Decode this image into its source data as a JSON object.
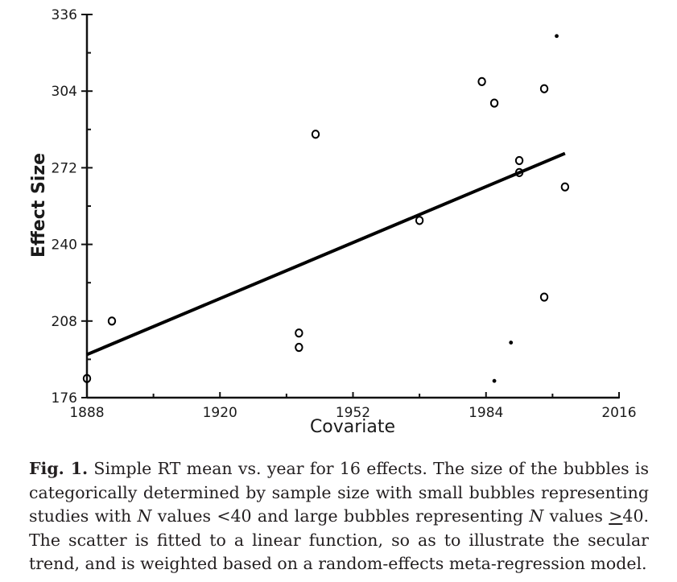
{
  "chart_data": {
    "type": "scatter",
    "title": "",
    "xlabel": "Covariate",
    "ylabel": "Effect Size",
    "xlim": [
      1888,
      2016
    ],
    "ylim": [
      176,
      336
    ],
    "x_ticks": [
      1888,
      1920,
      1952,
      1984,
      2016
    ],
    "x_tick_labels": [
      "1888",
      "1920",
      "1952",
      "1984",
      "2016"
    ],
    "y_ticks": [
      176,
      208,
      240,
      272,
      304,
      336
    ],
    "y_tick_labels": [
      "176",
      "208",
      "240",
      "272",
      "304",
      "336"
    ],
    "series": [
      {
        "name": "effects",
        "points": [
          {
            "x": 1888,
            "y": 184,
            "size": "large"
          },
          {
            "x": 1894,
            "y": 208,
            "size": "large"
          },
          {
            "x": 1939,
            "y": 203,
            "size": "large"
          },
          {
            "x": 1939,
            "y": 197,
            "size": "large"
          },
          {
            "x": 1943,
            "y": 286,
            "size": "large"
          },
          {
            "x": 1968,
            "y": 250,
            "size": "large"
          },
          {
            "x": 1983,
            "y": 308,
            "size": "large"
          },
          {
            "x": 1986,
            "y": 299,
            "size": "large"
          },
          {
            "x": 1986,
            "y": 183,
            "size": "small"
          },
          {
            "x": 1990,
            "y": 199,
            "size": "small"
          },
          {
            "x": 1992,
            "y": 275,
            "size": "large"
          },
          {
            "x": 1992,
            "y": 270,
            "size": "large"
          },
          {
            "x": 1998,
            "y": 305,
            "size": "large"
          },
          {
            "x": 1998,
            "y": 218,
            "size": "large"
          },
          {
            "x": 2001,
            "y": 327,
            "size": "small"
          },
          {
            "x": 2003,
            "y": 264,
            "size": "large"
          }
        ]
      }
    ],
    "fit_line": {
      "x": [
        1888,
        2003
      ],
      "y": [
        194,
        278
      ]
    },
    "grid": false
  },
  "caption": {
    "label": "Fig. 1.",
    "part1": " Simple RT mean vs. year for 16 effects. The size of the bubbles is categorically determined by sample size with small bubbles representing studies with ",
    "n1": "N",
    "part2": " values <40 and large bubbles representing ",
    "n2": "N",
    "part3": " values ",
    "geq": ">",
    "part4": "40. The scatter is fitted to a linear function, so as to illustrate the secular trend, and is weighted based on a random-effects meta-regression model."
  }
}
